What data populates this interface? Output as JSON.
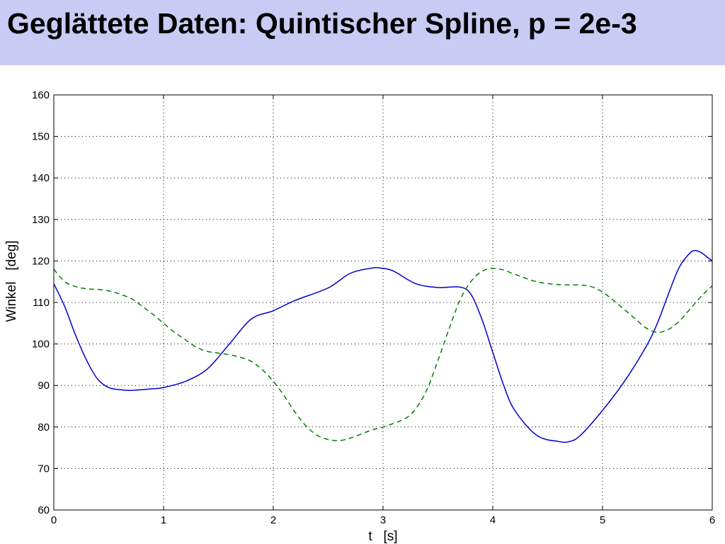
{
  "slide": {
    "title": "Geglättete Daten: Quintischer Spline, p = 2e-3"
  },
  "chart_data": {
    "type": "line",
    "title": "",
    "xlabel": "t   [s]",
    "ylabel": "Winkel   [deg]",
    "xlim": [
      0,
      6
    ],
    "ylim": [
      60,
      160
    ],
    "xticks": [
      0,
      1,
      2,
      3,
      4,
      5,
      6
    ],
    "yticks": [
      60,
      70,
      80,
      90,
      100,
      110,
      120,
      130,
      140,
      150,
      160
    ],
    "grid": true,
    "series": [
      {
        "color": "#0000cc",
        "style": "solid",
        "x": [
          0,
          0.1,
          0.2,
          0.3,
          0.4,
          0.5,
          0.6,
          0.7,
          0.8,
          0.9,
          1.0,
          1.2,
          1.4,
          1.6,
          1.8,
          2.0,
          2.2,
          2.5,
          2.7,
          2.9,
          3.0,
          3.1,
          3.3,
          3.5,
          3.7,
          3.8,
          3.9,
          4.0,
          4.1,
          4.2,
          4.4,
          4.6,
          4.7,
          4.8,
          5.0,
          5.2,
          5.4,
          5.5,
          5.6,
          5.7,
          5.8,
          5.85,
          5.9,
          5.95,
          6.0
        ],
        "y": [
          114.5,
          109,
          102,
          96,
          91.5,
          89.5,
          89,
          88.8,
          89,
          89.2,
          89.5,
          91,
          94,
          100,
          106,
          108,
          110.5,
          113.5,
          117,
          118.3,
          118.2,
          117.5,
          114.5,
          113.6,
          113.7,
          112,
          106,
          98,
          90,
          84,
          78,
          76.5,
          76.5,
          78,
          84,
          91,
          99.5,
          105,
          112,
          118.5,
          122,
          122.5,
          122,
          121,
          120
        ]
      },
      {
        "color": "#008000",
        "style": "dashed",
        "x": [
          0,
          0.1,
          0.2,
          0.3,
          0.5,
          0.7,
          0.8,
          0.9,
          1.0,
          1.1,
          1.2,
          1.3,
          1.4,
          1.5,
          1.6,
          1.7,
          1.8,
          1.9,
          2.0,
          2.1,
          2.2,
          2.3,
          2.4,
          2.5,
          2.6,
          2.7,
          2.8,
          2.9,
          3.0,
          3.2,
          3.3,
          3.4,
          3.5,
          3.6,
          3.7,
          3.8,
          3.9,
          4.0,
          4.1,
          4.2,
          4.4,
          4.6,
          4.8,
          4.9,
          5.0,
          5.1,
          5.2,
          5.3,
          5.4,
          5.5,
          5.6,
          5.7,
          5.8,
          5.9,
          6.0
        ],
        "y": [
          118,
          115,
          113.8,
          113.3,
          112.8,
          111,
          109.2,
          107.2,
          105,
          102.8,
          101,
          99.2,
          98.2,
          97.8,
          97.4,
          96.8,
          95.8,
          93.8,
          91,
          87.5,
          83.5,
          80.2,
          78,
          77,
          76.7,
          77.3,
          78.3,
          79.3,
          80,
          82,
          84.5,
          89,
          96,
          103.5,
          110.5,
          115,
          117.5,
          118.2,
          117.8,
          116.8,
          115,
          114.3,
          114.2,
          113.8,
          112.5,
          110.5,
          108.3,
          106,
          103.8,
          102.8,
          103.5,
          105.5,
          108.5,
          111.5,
          114
        ]
      }
    ]
  }
}
